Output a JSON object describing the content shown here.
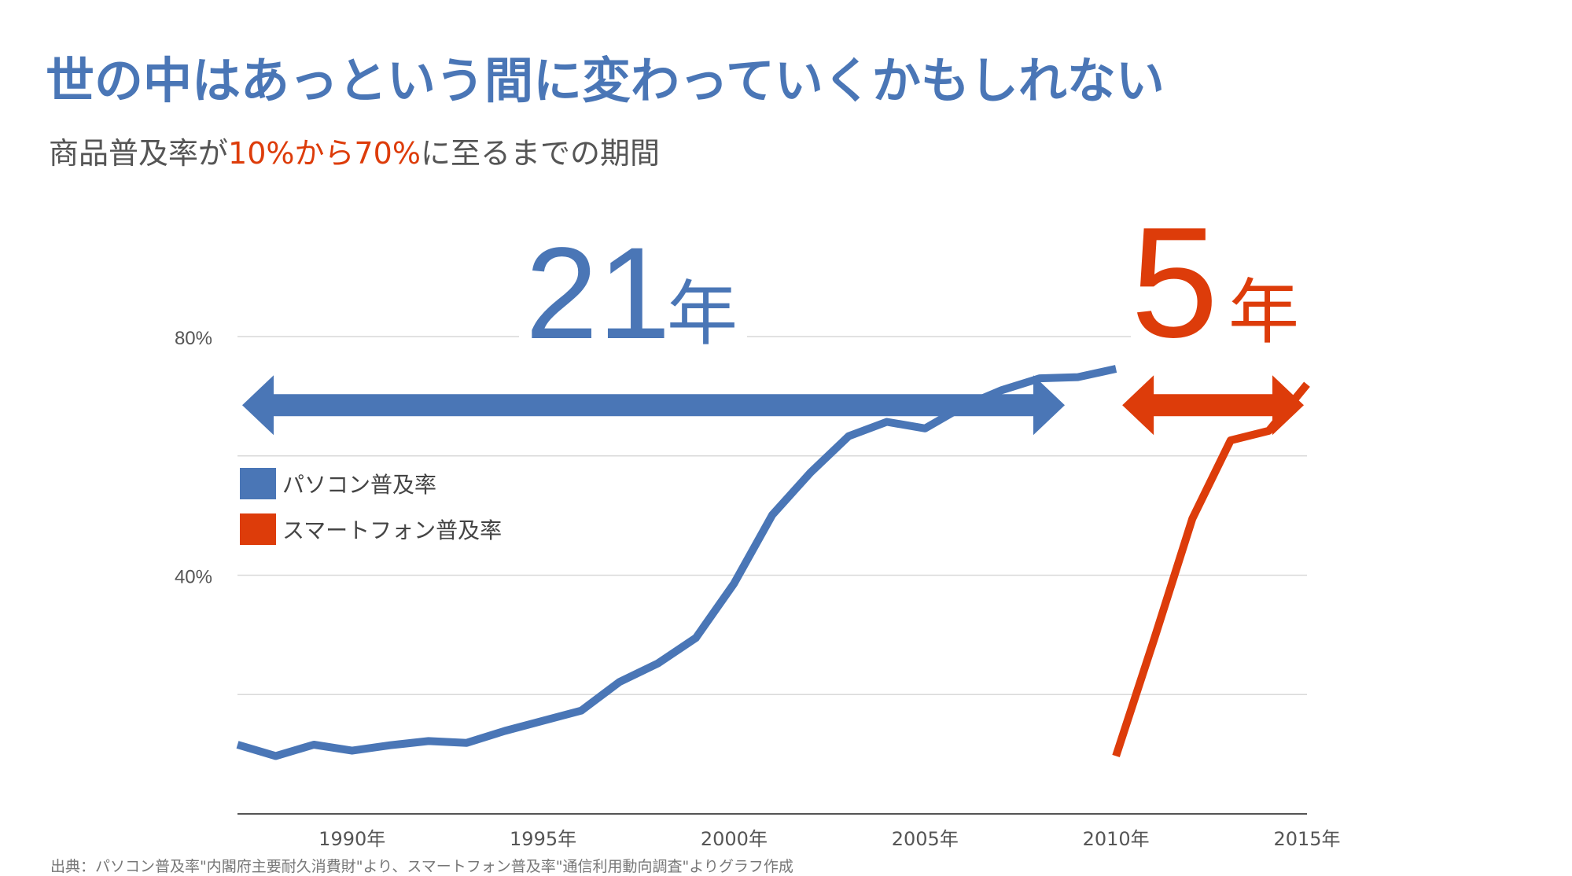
{
  "title": "世の中はあっという間に変わっていくかもしれない",
  "subtitle": {
    "before": "商品普及率が",
    "highlight": "10%から70%",
    "after": "に至るまでの期間"
  },
  "source": "出典：パソコン普及率\"内閣府主要耐久消費財\"より、スマートフォン普及率\"通信利用動向調査\"よりグラフ作成",
  "colors": {
    "pc": "#4a76b6",
    "smartphone": "#dd3c0a"
  },
  "chart_data": {
    "type": "line",
    "xlim": [
      1987,
      2015
    ],
    "ylim": [
      0,
      80
    ],
    "grid": true,
    "legend_position": "left",
    "y_ticks": [
      {
        "value": 40,
        "label": "40%"
      },
      {
        "value": 80,
        "label": "80%"
      }
    ],
    "y_gridlines": [
      20,
      40,
      60,
      80
    ],
    "x_ticks": [
      {
        "value": 1990,
        "label": "1990年"
      },
      {
        "value": 1995,
        "label": "1995年"
      },
      {
        "value": 2000,
        "label": "2000年"
      },
      {
        "value": 2005,
        "label": "2005年"
      },
      {
        "value": 2010,
        "label": "2010年"
      },
      {
        "value": 2015,
        "label": "2015年"
      }
    ],
    "series": [
      {
        "key": "pc",
        "name": "パソコン普及率",
        "x": [
          1987,
          1988,
          1989,
          1990,
          1991,
          1992,
          1993,
          1994,
          1995,
          1996,
          1997,
          1998,
          1999,
          2000,
          2001,
          2002,
          2003,
          2004,
          2005,
          2006,
          2007,
          2008,
          2009,
          2010
        ],
        "y": [
          11.6,
          9.7,
          11.6,
          10.6,
          11.5,
          12.2,
          11.9,
          13.9,
          15.6,
          17.3,
          22.1,
          25.2,
          29.5,
          38.6,
          50.1,
          57.2,
          63.3,
          65.7,
          64.6,
          68.3,
          71.0,
          73.0,
          73.2,
          74.6
        ]
      },
      {
        "key": "smartphone",
        "name": "スマートフォン普及率",
        "x": [
          2010,
          2011,
          2012,
          2013,
          2014,
          2015
        ],
        "y": [
          9.7,
          29.3,
          49.5,
          62.6,
          64.2,
          72.0
        ]
      }
    ],
    "annotations": [
      {
        "text": "21",
        "unit": "年",
        "from": 1987,
        "to": 2008,
        "color_key": "pc"
      },
      {
        "text": "5",
        "unit": "年",
        "from": 2010,
        "to": 2015,
        "color_key": "smartphone"
      }
    ]
  }
}
